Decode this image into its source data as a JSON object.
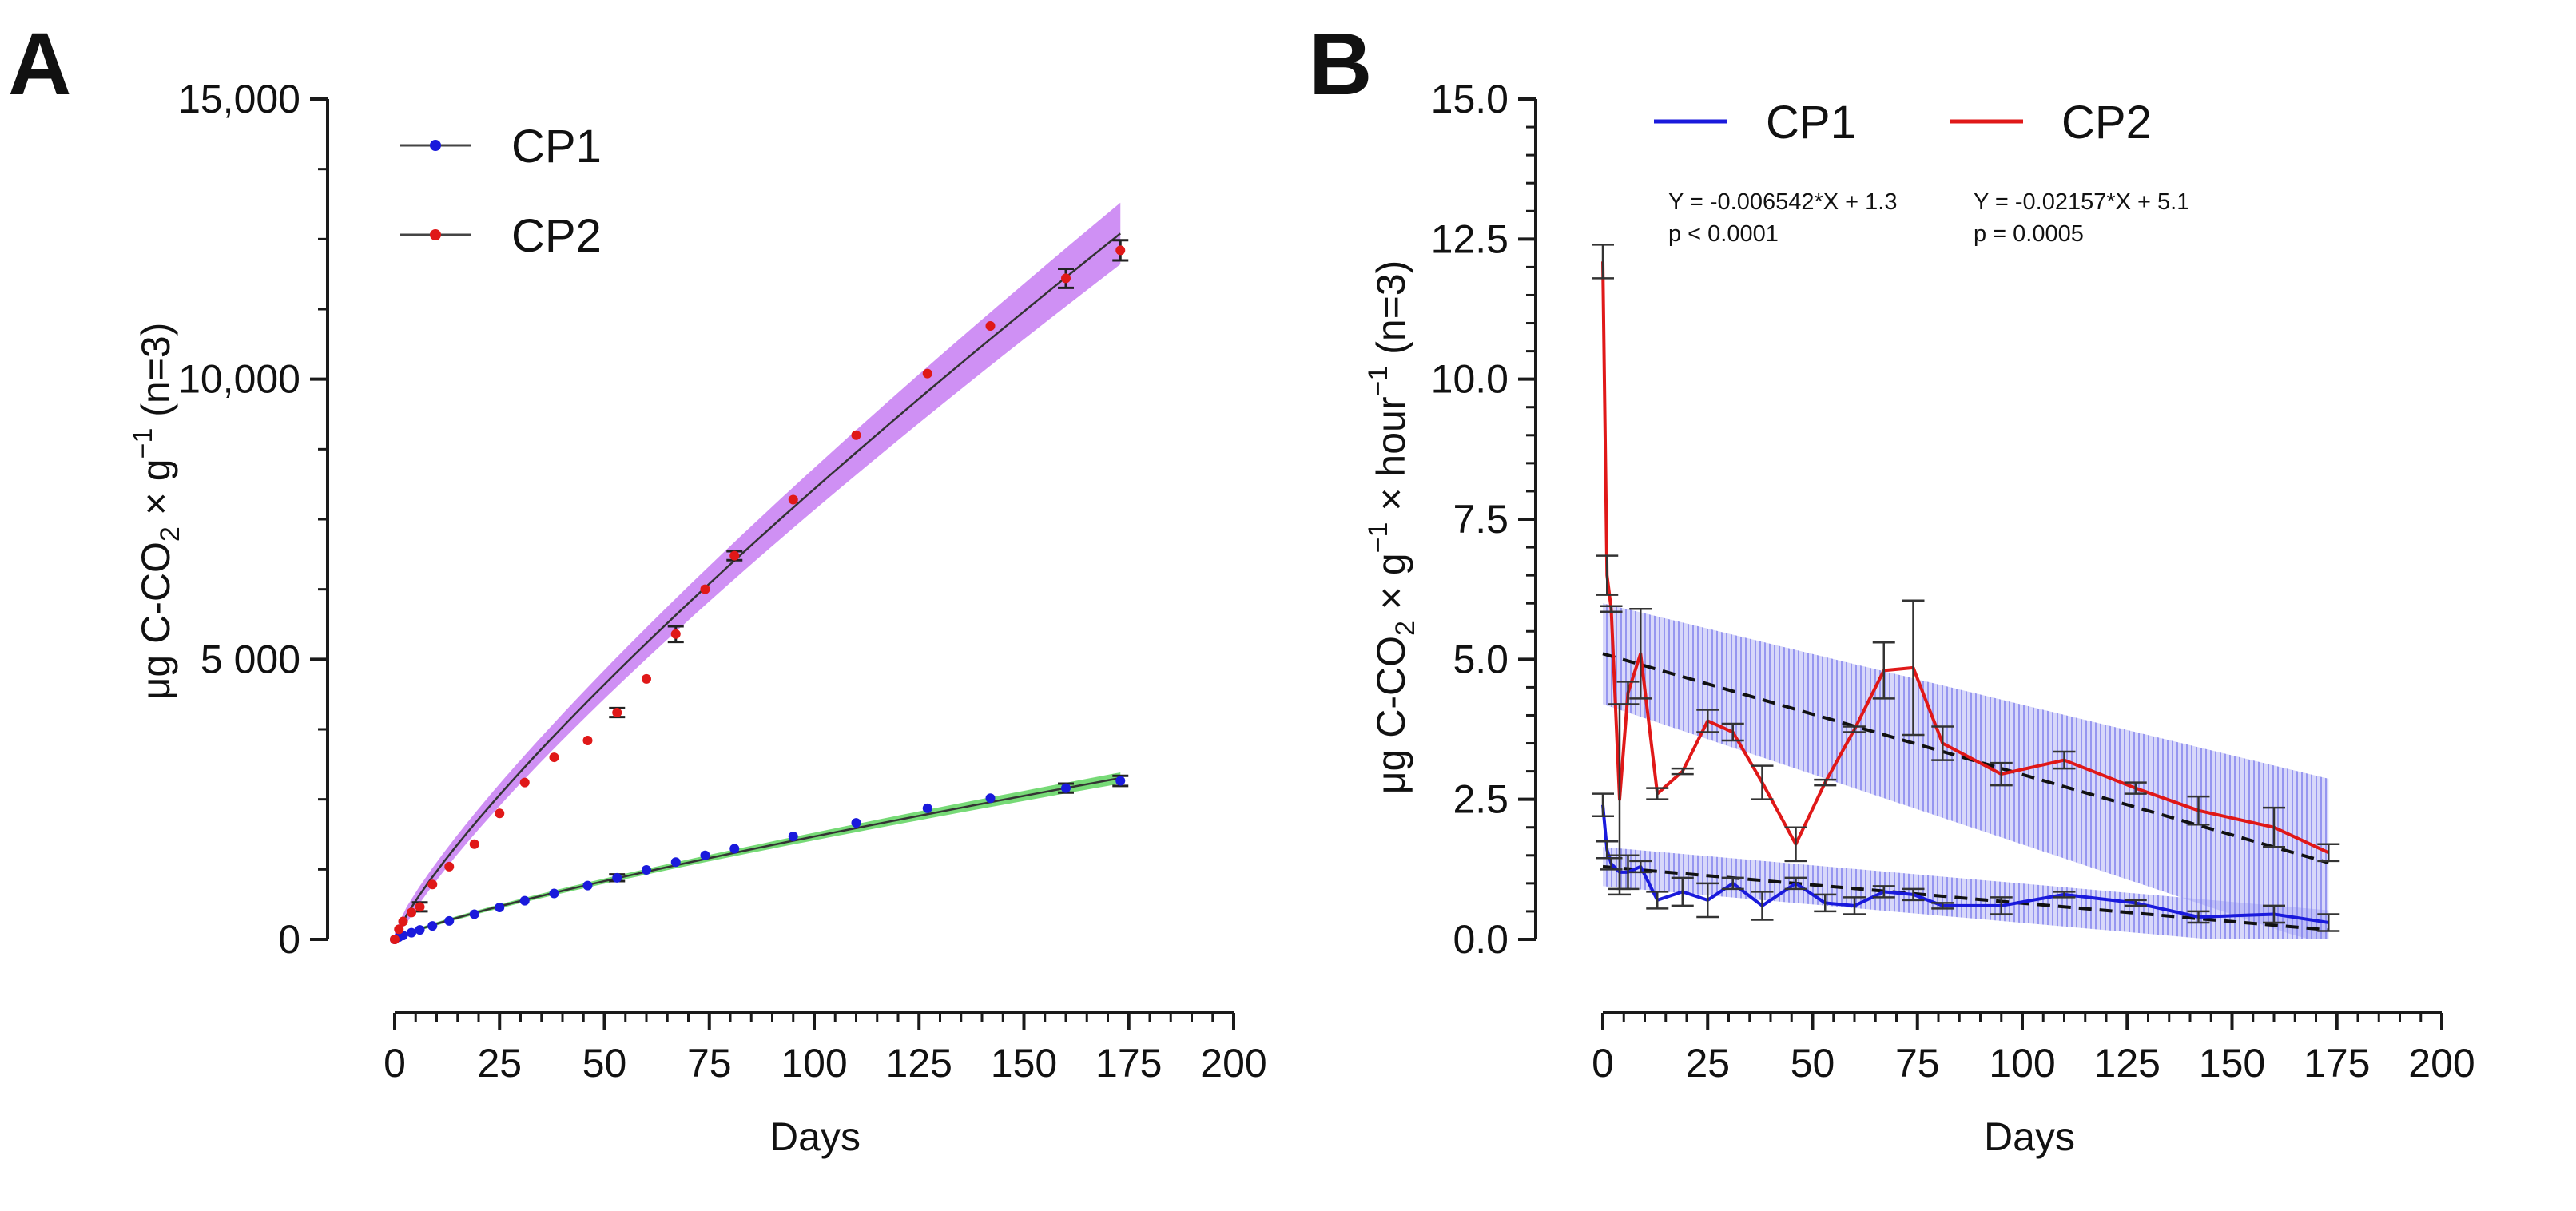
{
  "figure": {
    "colors": {
      "cp1": "#1a1adc",
      "cp2": "#e01818",
      "fit": "#333333",
      "band_a_cp1": "#5fd35f",
      "band_a_cp2": "#c77df2",
      "band_b": "#8f8ff0",
      "axis": "#1a1a1a"
    }
  },
  "chart_data": [
    {
      "panel": "A",
      "type": "scatter",
      "xlabel": "Days",
      "ylabel": "μg C-CO₂ × g⁻¹ (n=3)",
      "ylabel_parts": {
        "main": "μg C-CO",
        "sub": "2",
        "mid": " × g",
        "sup": "−1",
        "tail": " (n=3)"
      },
      "xlim": [
        0,
        200
      ],
      "ylim": [
        0,
        15000
      ],
      "xticks": [
        0,
        25,
        50,
        75,
        100,
        125,
        150,
        175,
        200
      ],
      "yticks": [
        0,
        5000,
        10000,
        15000
      ],
      "ytick_labels": [
        "0",
        "5 000",
        "10,000",
        "15,000"
      ],
      "legend": {
        "position": "top-left",
        "entries": [
          "CP1",
          "CP2"
        ]
      },
      "series": [
        {
          "name": "CP1",
          "color": "#1a1adc",
          "x": [
            0,
            1,
            2,
            4,
            6,
            9,
            13,
            19,
            25,
            31,
            38,
            46,
            53,
            60,
            67,
            74,
            81,
            95,
            110,
            127,
            142,
            160,
            173
          ],
          "y": [
            0,
            40,
            70,
            120,
            170,
            240,
            330,
            450,
            570,
            690,
            820,
            960,
            1100,
            1240,
            1380,
            1500,
            1620,
            1840,
            2080,
            2340,
            2520,
            2700,
            2830
          ],
          "err": [
            0,
            0,
            0,
            0,
            0,
            0,
            0,
            0,
            0,
            0,
            0,
            0,
            60,
            0,
            0,
            0,
            0,
            0,
            0,
            0,
            0,
            80,
            90
          ],
          "fit_end": 2880,
          "band_half_width": 100
        },
        {
          "name": "CP2",
          "color": "#e01818",
          "x": [
            0,
            1,
            2,
            4,
            6,
            9,
            13,
            19,
            25,
            31,
            38,
            46,
            53,
            60,
            67,
            74,
            81,
            95,
            110,
            127,
            142,
            160,
            173
          ],
          "y": [
            0,
            180,
            320,
            480,
            580,
            980,
            1300,
            1700,
            2250,
            2800,
            3250,
            3550,
            4050,
            4650,
            5450,
            6250,
            6850,
            7850,
            9000,
            10100,
            10950,
            11800,
            12300
          ],
          "err": [
            0,
            0,
            0,
            0,
            80,
            0,
            0,
            0,
            0,
            0,
            0,
            0,
            80,
            0,
            140,
            0,
            80,
            0,
            0,
            0,
            0,
            170,
            180
          ],
          "fit_end": 12600,
          "band_half_width": 550
        }
      ]
    },
    {
      "panel": "B",
      "type": "line",
      "xlabel": "Days",
      "ylabel": "μg C-CO₂ × g⁻¹ × hour⁻¹ (n=3)",
      "ylabel_parts": {
        "main": "μg C-CO",
        "sub": "2",
        "mid": " × g",
        "sup": "−1",
        "mid2": " × hour",
        "sup2": "−1",
        "tail": "  (n=3)"
      },
      "xlim": [
        0,
        200
      ],
      "ylim": [
        0,
        15
      ],
      "xticks": [
        0,
        25,
        50,
        75,
        100,
        125,
        150,
        175,
        200
      ],
      "yticks": [
        0,
        2.5,
        5,
        7.5,
        10,
        12.5,
        15
      ],
      "ytick_labels": [
        "0.0",
        "2.5",
        "5.0",
        "7.5",
        "10.0",
        "12.5",
        "15.0"
      ],
      "legend": {
        "position": "top",
        "entries": [
          "CP1",
          "CP2"
        ]
      },
      "series": [
        {
          "name": "CP1",
          "color": "#1a1adc",
          "x": [
            0,
            1,
            2,
            4,
            6,
            9,
            13,
            19,
            25,
            31,
            38,
            46,
            53,
            60,
            67,
            74,
            81,
            95,
            110,
            127,
            142,
            160,
            173
          ],
          "y": [
            2.4,
            1.6,
            1.35,
            1.2,
            1.2,
            1.3,
            0.7,
            0.85,
            0.7,
            1.0,
            0.6,
            1.0,
            0.65,
            0.6,
            0.85,
            0.8,
            0.6,
            0.6,
            0.8,
            0.65,
            0.4,
            0.45,
            0.3
          ],
          "err": [
            0.2,
            0.15,
            0.1,
            0.3,
            0.3,
            0.1,
            0.15,
            0.25,
            0.3,
            0.1,
            0.25,
            0.1,
            0.15,
            0.15,
            0.1,
            0.1,
            0.05,
            0.15,
            0.05,
            0.05,
            0.1,
            0.15,
            0.15
          ],
          "regression": {
            "equation": "Y = -0.006542*X + 1.3",
            "p_value": "p < 0.0001",
            "slope": -0.006542,
            "intercept": 1.3,
            "band_half_start": 0.35,
            "band_half_end": 0.35
          }
        },
        {
          "name": "CP2",
          "color": "#e01818",
          "x": [
            0,
            1,
            2,
            4,
            6,
            9,
            13,
            19,
            25,
            31,
            38,
            46,
            53,
            60,
            67,
            74,
            81,
            95,
            110,
            127,
            142,
            160,
            173
          ],
          "y": [
            12.1,
            6.5,
            5.9,
            2.5,
            4.4,
            5.1,
            2.6,
            3.0,
            3.9,
            3.7,
            2.8,
            1.7,
            2.8,
            3.75,
            4.8,
            4.85,
            3.5,
            2.95,
            3.2,
            2.7,
            2.3,
            2.0,
            1.55
          ],
          "err": [
            0.3,
            0.35,
            0.05,
            1.7,
            0.2,
            0.8,
            0.1,
            0.05,
            0.2,
            0.15,
            0.3,
            0.3,
            0.05,
            0.05,
            0.5,
            1.2,
            0.3,
            0.2,
            0.15,
            0.1,
            0.25,
            0.35,
            0.15
          ],
          "regression": {
            "equation": "Y = -0.02157*X + 5.1",
            "p_value": "p = 0.0005",
            "slope": -0.02157,
            "intercept": 5.1,
            "band_half_start": 0.9,
            "band_half_end": 1.5
          }
        }
      ]
    }
  ]
}
